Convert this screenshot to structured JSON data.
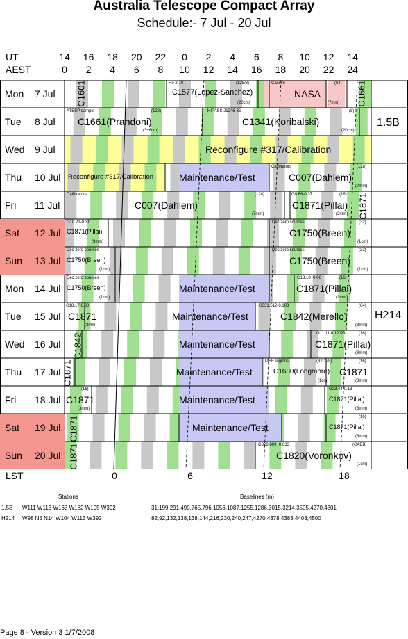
{
  "title": "Australia Telescope Compact Array",
  "subtitle": "Schedule:- 7  Jul - 20 Jul",
  "ut_label": "UT",
  "aest_label": "AEST",
  "lst_label": "LST",
  "ut_hours": [
    "14",
    "16",
    "18",
    "20",
    "22",
    "0",
    "2",
    "4",
    "6",
    "8",
    "10",
    "12",
    "14"
  ],
  "aest_hours": [
    "0",
    "2",
    "4",
    "6",
    "8",
    "10",
    "12",
    "14",
    "16",
    "18",
    "20",
    "22",
    "24"
  ],
  "lst_ticks": [
    "0",
    "6",
    "12",
    "18"
  ],
  "colors": {
    "green": "#a0e090",
    "grey": "#c8c8c8",
    "lavender": "#c8c8f4",
    "yellow": "#ffff99",
    "pink": "#f8c8c8",
    "weekend": "#f4958e"
  },
  "days": [
    {
      "name": "Mon",
      "date": "7  Jul",
      "weekend": false
    },
    {
      "name": "Tue",
      "date": "8  Jul",
      "weekend": false
    },
    {
      "name": "Wed",
      "date": "9  Jul",
      "weekend": false
    },
    {
      "name": "Thu",
      "date": "10 Jul",
      "weekend": false
    },
    {
      "name": "Fri",
      "date": "11 Jul",
      "weekend": false
    },
    {
      "name": "Sat",
      "date": "12 Jul",
      "weekend": true
    },
    {
      "name": "Sun",
      "date": "13 Jul",
      "weekend": true
    },
    {
      "name": "Mon",
      "date": "14 Jul",
      "weekend": false
    },
    {
      "name": "Tue",
      "date": "15 Jul",
      "weekend": false
    },
    {
      "name": "Wed",
      "date": "16 Jul",
      "weekend": false
    },
    {
      "name": "Thu",
      "date": "17 Jul",
      "weekend": false
    },
    {
      "name": "Fri",
      "date": "18 Jul",
      "weekend": false
    },
    {
      "name": "Sat",
      "date": "19 Jul",
      "weekend": true
    },
    {
      "name": "Sun",
      "date": "20 Jul",
      "weekend": true
    }
  ],
  "configs": [
    "1.5B",
    "H214"
  ],
  "entries": {
    "mon7": {
      "c1601": "C1601",
      "he": "He 2-10",
      "n128": "(128/8)",
      "c1577": "C1577(Lopez-Sanchez)",
      "cm20": "(20cm)",
      "cassini": "Cassini",
      "n64": "(64)",
      "nasa": "NASA",
      "mm7": "(7mm)",
      "c1661": "C1661"
    },
    "tue8": {
      "atesp": "ATESP sample",
      "n128": "(128)",
      "c1661": "C1661(Prandoni)",
      "cm36": "(3+6cm)",
      "hipass": "HIPASS J1246-35",
      "n8": "(8)",
      "c1341": "C1341(Koribalski)",
      "cm20": "(20cm)"
    },
    "wed9": {
      "reconf": "Reconfigure #317/Calibration"
    },
    "thu10": {
      "reconf": "Reconfigure #317/Calibration",
      "maint": "Maintenance/Test",
      "cal": "Calibrators",
      "n128": "(128)",
      "c007": "C007(Dahlem)",
      "mm7": "(7mm)"
    },
    "fri11": {
      "cal": "Calibrators",
      "n128": "(128)",
      "c007": "C007(Dahlem)",
      "mm7": "(7mm)",
      "g": "G8.68-0.37",
      "n16": "(16)",
      "c1871": "C1871(Pillai)",
      "mm3": "(3mm)",
      "c1871v": "C1871"
    },
    "sat12": {
      "g": "G10.21-0.31",
      "c1871": "C1871(Pillai)",
      "mm3": "(3mm)",
      "dec": "Dec zero sources",
      "n32": "(32)",
      "c1750": "C1750(Breen)",
      "cm1": "(1cm)"
    },
    "sun13": {
      "dec": "Dec zero sources",
      "c1750": "C1750(Breen)",
      "cm1": "(1cm)",
      "dec2": "Dec zero sources",
      "n32": "(32)",
      "c1750b": "C1750(Breen)",
      "cm1b": "(1cm)"
    },
    "mon14": {
      "dec": "Dec zero sources",
      "c1750": "C1750(Breen)",
      "cm1": "(1cm)",
      "maint": "Maintenance/Test",
      "g": "G13.18+0.06",
      "n16": "(16)",
      "c1871": "C1871(Pillai)",
      "mm3": "(3mm)"
    },
    "tue15": {
      "g": "G18.17-0.30",
      "c1871": "C1871",
      "mm3": "(3mm)",
      "maint": "Maintenance/Test",
      "g2": "G331.512-0.103",
      "n64": "(64)",
      "c1842": "C1842(Merello)",
      "mm3b": "(3mm)"
    },
    "wed16": {
      "c1842": "C1842",
      "maint": "Maintenance/Test",
      "g": "G11.11-0.12 P3",
      "n16": "(16)",
      "c1871": "C1871(Pillai)",
      "mm3": "(3mm)"
    },
    "thu17": {
      "c1871v": "C1871",
      "maint": "Maintenance/Test",
      "msf": "MSF regions",
      "n32": "(32/128)",
      "c1680": "C1680(Longmore)",
      "cm1": "(1cm)",
      "n16": "(16)",
      "c1871": "C1871",
      "mm3": "(3mm)"
    },
    "fri18": {
      "n16": "(16)",
      "c1871": "C1871",
      "mm3": "(3mm)",
      "maint": "Maintenance/Test",
      "g": "G23.44-0.18",
      "c1871p": "C1871(Pillai)",
      "mm3b": "(3mm)"
    },
    "sat19": {
      "c1871v": "C1871",
      "maint": "Maintenance/Test",
      "n16": "(16)",
      "c1871p": "C1871(Pillai)",
      "mm3": "(3mm)"
    },
    "sun20": {
      "c1871v": "C1871",
      "g": "G328.809+0.633",
      "cabb": "(CABB)",
      "c1820": "C1820(Voronkov)",
      "cm1": "(1cm)"
    }
  },
  "stations_header": "Stations",
  "baselines_header": "Baselines (m)",
  "config_rows": [
    {
      "name": "1.5B",
      "stations": "W111 W113 W163 W182 W195 W392",
      "baselines": "31,199,291,490,765,796,1056,1087,1255,1286,3015,3214,3505,4270,4301"
    },
    {
      "name": "H214",
      "stations": "W98 N5 N14 W104 W113 W392",
      "baselines": "82,92,132,138,138,144,216,230,240,247,4270,4378,4383,4408,4500"
    }
  ],
  "footer": "Page 8 - Version 3  1/7/2008"
}
